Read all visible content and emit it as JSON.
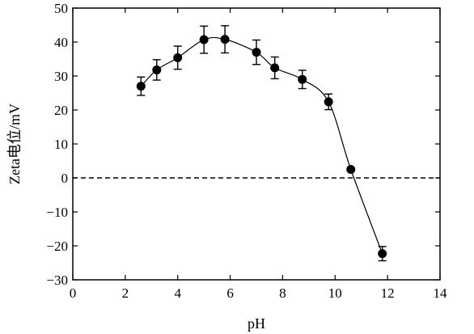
{
  "chart_data": {
    "type": "scatter",
    "title": "",
    "xlabel": "pH",
    "ylabel": "Zeta电位/mV",
    "xlim": [
      0,
      14
    ],
    "ylim": [
      -30,
      50
    ],
    "xticks": [
      0,
      2,
      4,
      6,
      8,
      10,
      12,
      14
    ],
    "yticks": [
      -30,
      -20,
      -10,
      0,
      10,
      20,
      30,
      40,
      50
    ],
    "grid": false,
    "legend": "none",
    "reference_line": {
      "y": 0,
      "style": "dashed"
    },
    "smooth_curve": true,
    "marker_color": "#000000",
    "series": [
      {
        "x": [
          2.6,
          3.2,
          4.0,
          5.0,
          5.8,
          7.0,
          7.7,
          8.75,
          9.75,
          10.6,
          11.8
        ],
        "y": [
          27.0,
          31.8,
          35.4,
          40.7,
          40.8,
          37.0,
          32.4,
          29.0,
          22.4,
          2.5,
          -22.3
        ],
        "error": [
          2.7,
          3.0,
          3.4,
          4.0,
          4.0,
          3.6,
          3.2,
          2.7,
          2.3,
          0,
          2.1
        ]
      }
    ]
  }
}
